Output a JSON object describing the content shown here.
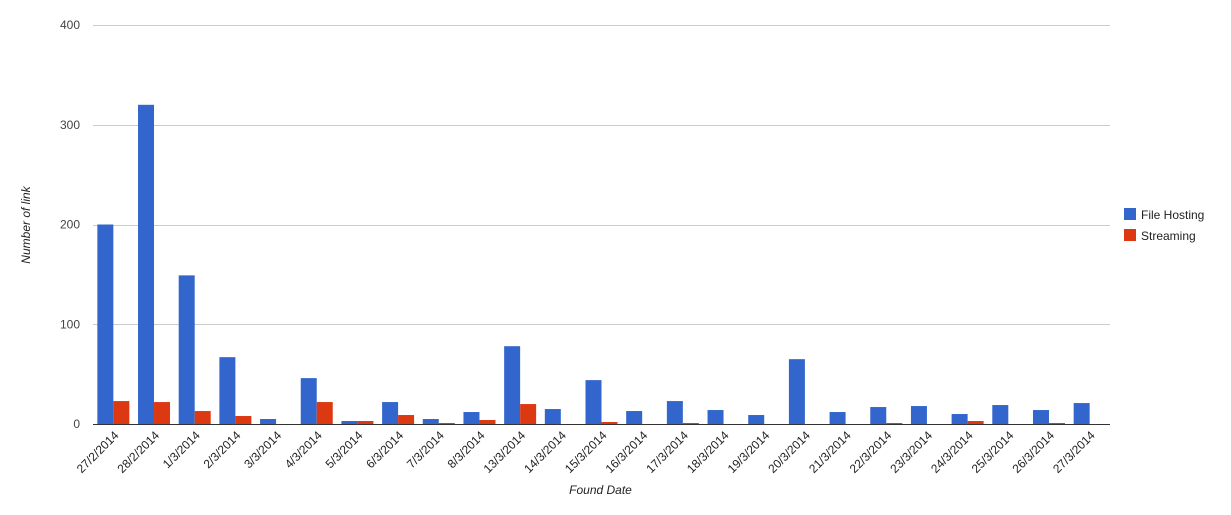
{
  "chart_data": {
    "type": "bar",
    "title": "",
    "xlabel": "Found Date",
    "ylabel": "Number of link",
    "ylim": [
      0,
      400
    ],
    "yticks": [
      0,
      100,
      200,
      300,
      400
    ],
    "grid": true,
    "legend_position": "right",
    "categories": [
      "27/2/2014",
      "28/2/2014",
      "1/3/2014",
      "2/3/2014",
      "3/3/2014",
      "4/3/2014",
      "5/3/2014",
      "6/3/2014",
      "7/3/2014",
      "8/3/2014",
      "13/3/2014",
      "14/3/2014",
      "15/3/2014",
      "16/3/2014",
      "17/3/2014",
      "18/3/2014",
      "19/3/2014",
      "20/3/2014",
      "21/3/2014",
      "22/3/2014",
      "23/3/2014",
      "24/3/2014",
      "25/3/2014",
      "26/3/2014",
      "27/3/2014"
    ],
    "series": [
      {
        "name": "File Hosting",
        "color": "#3366cc",
        "values": [
          200,
          320,
          149,
          67,
          5,
          46,
          3,
          22,
          5,
          12,
          78,
          15,
          44,
          13,
          23,
          14,
          9,
          65,
          12,
          17,
          18,
          10,
          19,
          14,
          21
        ]
      },
      {
        "name": "Streaming",
        "color": "#dc3912",
        "values": [
          23,
          22,
          13,
          8,
          0,
          22,
          3,
          9,
          1,
          4,
          20,
          0,
          2,
          0,
          1,
          0,
          0,
          0,
          0,
          1,
          0,
          3,
          0,
          1,
          0
        ]
      }
    ]
  }
}
